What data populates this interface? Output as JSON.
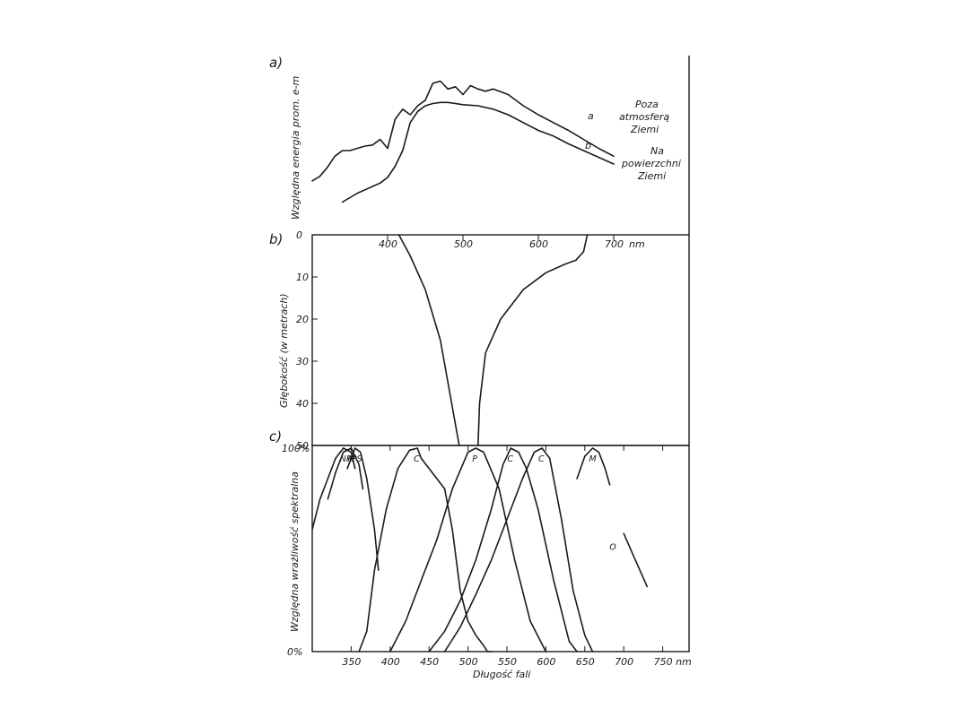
{
  "chart_data": [
    {
      "panel_label": "a)",
      "type": "line",
      "ylabel": "Względna energia prom. e-m",
      "series": [
        {
          "name": "a",
          "x": [
            300,
            310,
            320,
            330,
            340,
            350,
            360,
            370,
            380,
            390,
            400,
            410,
            420,
            430,
            440,
            450,
            460,
            470,
            480,
            490,
            500,
            510,
            520,
            530,
            540,
            560,
            580,
            600,
            620,
            640,
            660,
            680,
            700
          ],
          "y": [
            0.33,
            0.37,
            0.45,
            0.55,
            0.6,
            0.6,
            0.62,
            0.64,
            0.65,
            0.7,
            0.62,
            0.88,
            0.97,
            0.92,
            1.0,
            1.05,
            1.2,
            1.22,
            1.15,
            1.17,
            1.1,
            1.18,
            1.15,
            1.13,
            1.15,
            1.1,
            1.0,
            0.92,
            0.85,
            0.78,
            0.7,
            0.62,
            0.55
          ]
        },
        {
          "name": "b",
          "x": [
            340,
            350,
            360,
            370,
            380,
            390,
            400,
            410,
            420,
            430,
            440,
            450,
            460,
            470,
            480,
            490,
            500,
            520,
            540,
            560,
            580,
            600,
            620,
            640,
            660,
            680,
            700
          ],
          "y": [
            0.14,
            0.18,
            0.22,
            0.25,
            0.28,
            0.31,
            0.36,
            0.46,
            0.6,
            0.85,
            0.95,
            1.0,
            1.02,
            1.03,
            1.03,
            1.02,
            1.01,
            1.0,
            0.97,
            0.92,
            0.85,
            0.78,
            0.73,
            0.66,
            0.6,
            0.54,
            0.48
          ]
        }
      ],
      "annotations": {
        "a": "a",
        "b": "b",
        "outside_line1": "Poza",
        "outside_line2": "atmosferą",
        "outside_line3": "Ziemi",
        "surface_line1": "Na",
        "surface_line2": "powierzchni",
        "surface_line3": "Ziemi"
      }
    },
    {
      "panel_label": "b)",
      "type": "line",
      "ylabel": "Głębokość (w metrach)",
      "xlabel_unit": "nm",
      "x_ticks": [
        "400",
        "500",
        "600",
        "700"
      ],
      "y_ticks": [
        "0",
        "10",
        "20",
        "30",
        "40",
        "50"
      ],
      "ylim": [
        0,
        50
      ],
      "series": [
        {
          "x": [
            415,
            430,
            450,
            470,
            480,
            490,
            495
          ],
          "y": [
            0,
            5,
            13,
            25,
            35,
            45,
            50
          ]
        },
        {
          "x": [
            520,
            522,
            530,
            550,
            580,
            610,
            635,
            650,
            660,
            665
          ],
          "y": [
            50,
            40,
            28,
            20,
            13,
            9,
            7,
            6,
            4,
            0
          ]
        }
      ]
    },
    {
      "panel_label": "c)",
      "type": "line",
      "xlabel": "Długość fali",
      "ylabel": "Względna wrażliwość spektralna",
      "x_ticks": [
        "350",
        "400",
        "450",
        "500",
        "550",
        "600",
        "650",
        "700",
        "750 nm"
      ],
      "y_ticks": [
        "0%",
        "100%"
      ],
      "ylim": [
        0,
        100
      ],
      "series": [
        {
          "name": "NR",
          "x": [
            300,
            310,
            320,
            330,
            340,
            350,
            355
          ],
          "y": [
            60,
            75,
            85,
            95,
            100,
            98,
            90
          ]
        },
        {
          "name": "M",
          "x": [
            320,
            330,
            340,
            350,
            360,
            365
          ],
          "y": [
            75,
            88,
            98,
            100,
            92,
            80
          ]
        },
        {
          "name": "PS",
          "x": [
            345,
            355,
            362,
            370,
            380,
            385
          ],
          "y": [
            90,
            100,
            98,
            85,
            60,
            40
          ]
        },
        {
          "name": "C",
          "x": [
            360,
            370,
            380,
            395,
            410,
            425,
            435,
            440,
            460,
            470,
            480,
            490,
            500,
            510,
            520,
            525,
            530
          ],
          "y": [
            0,
            10,
            40,
            70,
            90,
            99,
            100,
            95,
            85,
            80,
            60,
            30,
            15,
            8,
            3,
            0,
            0
          ]
        },
        {
          "name": "P",
          "x": [
            400,
            420,
            440,
            460,
            480,
            500,
            510,
            520,
            540,
            560,
            580,
            600
          ],
          "y": [
            0,
            15,
            35,
            55,
            80,
            98,
            100,
            98,
            80,
            45,
            15,
            0
          ]
        },
        {
          "name": "C",
          "x": [
            450,
            470,
            490,
            510,
            530,
            545,
            555,
            565,
            575,
            590,
            610,
            630,
            640
          ],
          "y": [
            0,
            10,
            25,
            45,
            70,
            92,
            100,
            98,
            90,
            70,
            35,
            5,
            0
          ]
        },
        {
          "name": "C",
          "x": [
            470,
            490,
            510,
            530,
            550,
            570,
            585,
            595,
            605,
            620,
            635,
            650,
            660
          ],
          "y": [
            0,
            12,
            28,
            45,
            65,
            85,
            98,
            100,
            95,
            65,
            30,
            8,
            0
          ]
        },
        {
          "name": "M",
          "x": [
            640,
            650,
            660,
            668,
            676,
            682
          ],
          "y": [
            85,
            96,
            100,
            98,
            90,
            82
          ]
        },
        {
          "name": "O",
          "x": [
            700,
            715,
            730
          ],
          "y": [
            58,
            45,
            32
          ]
        }
      ],
      "curve_labels": [
        "NR",
        "M",
        "PS",
        "C",
        "P",
        "C",
        "C",
        "M",
        "O"
      ]
    }
  ]
}
